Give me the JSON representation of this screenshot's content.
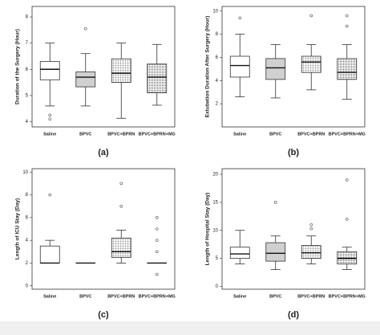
{
  "chart_data": [
    {
      "type": "box",
      "caption": "(a)",
      "ylabel": "Duration of the Surgery (Hour)",
      "categories": [
        "Saline",
        "BPVC",
        "BPVC+BPRN",
        "BPVC+BPRN+MG"
      ],
      "boxes": [
        {
          "whislo": 4.6,
          "q1": 5.6,
          "med": 6.0,
          "q3": 6.3,
          "whishi": 7.0,
          "fliers": [
            4.25,
            4.1
          ]
        },
        {
          "whislo": 4.6,
          "q1": 5.33,
          "med": 5.7,
          "q3": 5.9,
          "whishi": 6.6,
          "fliers": [
            7.55
          ]
        },
        {
          "whislo": 4.13,
          "q1": 5.5,
          "med": 5.85,
          "q3": 6.4,
          "whishi": 7.0,
          "fliers": []
        },
        {
          "whislo": 4.63,
          "q1": 5.1,
          "med": 5.7,
          "q3": 6.2,
          "whishi": 6.95,
          "fliers": []
        }
      ],
      "ylim": [
        3.8,
        8.4
      ],
      "yticks": [
        4,
        5,
        6,
        7,
        8
      ]
    },
    {
      "type": "box",
      "caption": "(b)",
      "ylabel": "Extubation Duration After Surgery (Hour)",
      "categories": [
        "Saline",
        "BPVC",
        "BPVC+BPRN",
        "BPVC+BPRN+MG"
      ],
      "boxes": [
        {
          "whislo": 2.6,
          "q1": 4.3,
          "med": 5.3,
          "q3": 6.1,
          "whishi": 8.0,
          "fliers": [
            9.4
          ]
        },
        {
          "whislo": 2.5,
          "q1": 4.1,
          "med": 5.1,
          "q3": 5.9,
          "whishi": 7.1,
          "fliers": []
        },
        {
          "whislo": 3.2,
          "q1": 4.7,
          "med": 5.6,
          "q3": 6.1,
          "whishi": 7.1,
          "fliers": [
            9.6
          ]
        },
        {
          "whislo": 2.4,
          "q1": 4.1,
          "med": 4.7,
          "q3": 5.9,
          "whishi": 7.1,
          "fliers": [
            9.6,
            8.7
          ]
        }
      ],
      "ylim": [
        0,
        10.4
      ],
      "yticks": [
        2,
        4,
        6,
        8,
        10
      ]
    },
    {
      "type": "box",
      "caption": "(c)",
      "ylabel": "Length of ICU Stay (Day)",
      "categories": [
        "Saline",
        "BPVC",
        "BPVC+BPRN",
        "BPVC+BPRN+MG"
      ],
      "boxes": [
        {
          "whislo": 2,
          "q1": 2,
          "med": 2,
          "q3": 3.5,
          "whishi": 4,
          "fliers": [
            8
          ]
        },
        {
          "whislo": 2,
          "q1": 2,
          "med": 2,
          "q3": 2,
          "whishi": 2,
          "fliers": []
        },
        {
          "whislo": 2,
          "q1": 2.5,
          "med": 3,
          "q3": 4.2,
          "whishi": 4.9,
          "fliers": [
            9,
            7
          ]
        },
        {
          "whislo": 2,
          "q1": 2,
          "med": 2,
          "q3": 2,
          "whishi": 2,
          "fliers": [
            6,
            5,
            4,
            3,
            1
          ]
        }
      ],
      "ylim": [
        -0.3,
        10.3
      ],
      "yticks": [
        0,
        2,
        4,
        6,
        8,
        10
      ]
    },
    {
      "type": "box",
      "caption": "(d)",
      "ylabel": "Length of Hospital Stay (Day)",
      "categories": [
        "Saline",
        "BPVC",
        "BPVC+BPRN",
        "BPVC+BPRN+MG"
      ],
      "boxes": [
        {
          "whislo": 4,
          "q1": 5,
          "med": 5.8,
          "q3": 7,
          "whishi": 10,
          "fliers": []
        },
        {
          "whislo": 3,
          "q1": 4.5,
          "med": 5.9,
          "q3": 7.8,
          "whishi": 9,
          "fliers": [
            15
          ]
        },
        {
          "whislo": 4,
          "q1": 5,
          "med": 6,
          "q3": 7.3,
          "whishi": 9,
          "fliers": [
            11,
            10.3
          ]
        },
        {
          "whislo": 3,
          "q1": 4,
          "med": 5,
          "q3": 6.2,
          "whishi": 7,
          "fliers": [
            19,
            12
          ]
        }
      ],
      "ylim": [
        -0.5,
        21
      ],
      "yticks": [
        0,
        5,
        10,
        15,
        20
      ]
    }
  ]
}
